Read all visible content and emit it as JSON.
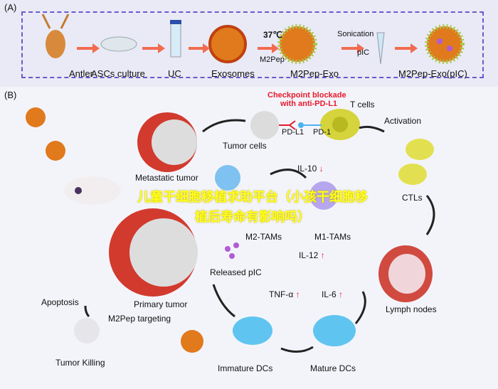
{
  "panel_a": {
    "label": "(A)",
    "steps": [
      "Antler",
      "ASCs culture",
      "UC",
      "Exosomes",
      "M2Pep-Exo",
      "M2Pep-Exo(pIC)"
    ],
    "temperature": "37℃",
    "peptide": "M2Pep",
    "sonication": "Sonication",
    "pic": "pIC"
  },
  "panel_b": {
    "label": "(B)",
    "checkpoint_line1": "Checkpoint blockade",
    "checkpoint_line2": "with anti-PD-L1",
    "t_cells": "T cells",
    "pd_l1": "PD-L1",
    "pd_1": "PD-1",
    "tumor_cells": "Tumor cells",
    "activation": "Activation",
    "metastatic_tumor": "Metastatic tumor",
    "il10": "IL-10",
    "m2_tams": "M2-TAMs",
    "m1_tams": "M1-TAMs",
    "ctls": "CTLs",
    "il12": "IL-12",
    "released_pic": "Released pIC",
    "tnf": "TNF-α",
    "il6": "IL-6",
    "lymph_nodes": "Lymph nodes",
    "apoptosis": "Apoptosis",
    "primary_tumor": "Primary tumor",
    "m2pep_targeting": "M2Pep targeting",
    "tumor_killing": "Tumor Killing",
    "immature_dcs": "Immature DCs",
    "mature_dcs": "Mature DCs",
    "arrow_up": "↑",
    "arrow_down": "↓"
  },
  "overlay_text": "儿童干细胞移植求助平台（小孩干细胞移植后寿命有影响吗）",
  "colors": {
    "dash": "#6a5acd",
    "arrow": "#f26b4f",
    "red_text": "#e8192c",
    "overlay": "#ffff1a"
  }
}
